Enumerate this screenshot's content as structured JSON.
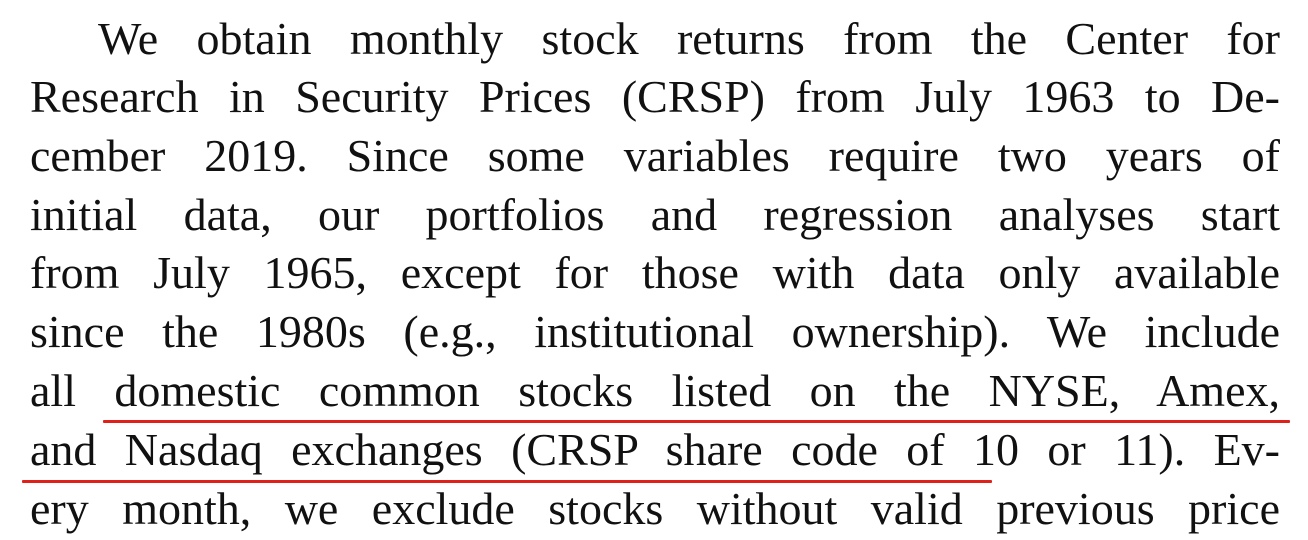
{
  "paragraph": {
    "lines": [
      "We obtain monthly stock returns from the Center for",
      "Research in Security Prices (CRSP) from July 1963 to De-",
      "cember 2019. Since some variables require two years of",
      "initial data, our portfolios and regression analyses start",
      "from July 1965, except for those with data only available",
      "since the 1980s (e.g., institutional ownership). We include",
      "all domestic common stocks listed on the NYSE, Amex,",
      "and Nasdaq exchanges (CRSP share code of 10 or 11). Ev-",
      "ery month, we exclude stocks without valid previous price"
    ]
  },
  "highlight": {
    "color": "#e0201b",
    "text": "domestic common stocks listed on the NYSE, Amex, and Nasdaq exchanges (CRSP share code of 10 or 11)"
  }
}
